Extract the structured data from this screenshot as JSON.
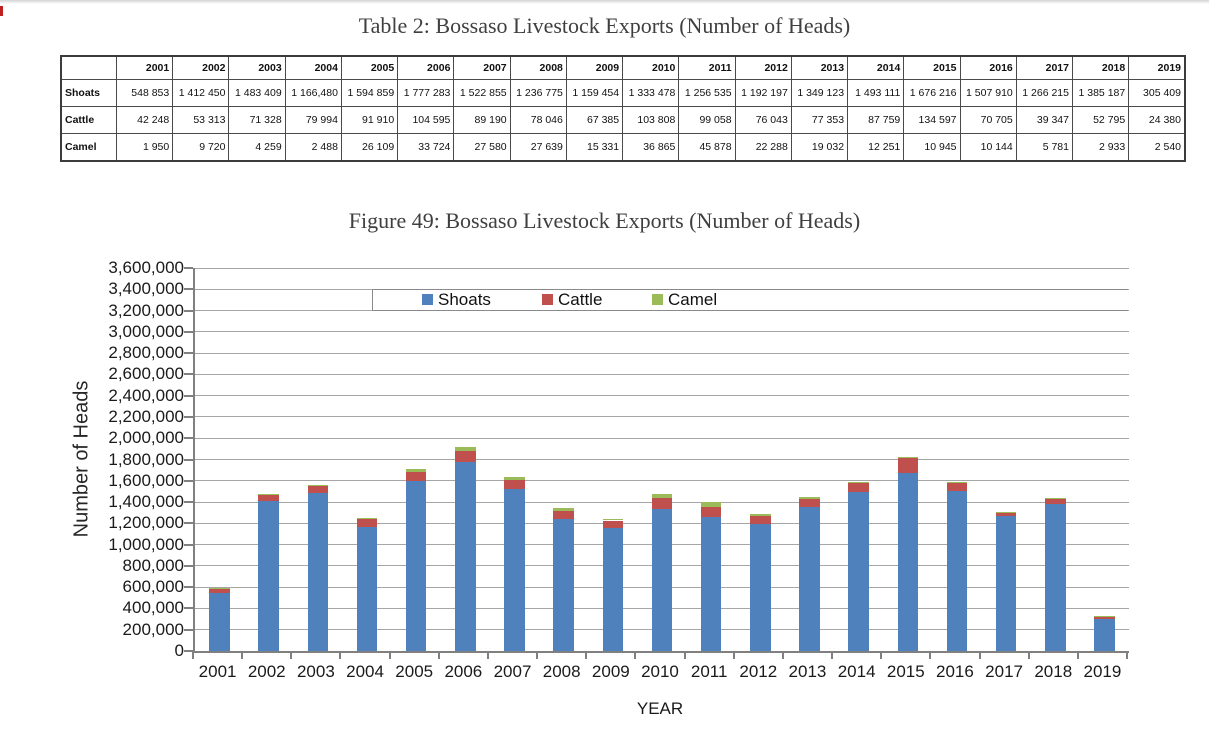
{
  "page": {
    "table_title": "Table 2: Bossaso Livestock Exports (Number of Heads)",
    "figure_title": "Figure 49: Bossaso Livestock Exports (Number of Heads)"
  },
  "table": {
    "header": [
      "",
      "2001",
      "2002",
      "2003",
      "2004",
      "2005",
      "2006",
      "2007",
      "2008",
      "2009",
      "2010",
      "2011",
      "2012",
      "2013",
      "2014",
      "2015",
      "2016",
      "2017",
      "2018",
      "2019"
    ],
    "rows": [
      {
        "label": "Shoats",
        "values": [
          "548 853",
          "1 412 450",
          "1 483 409",
          "1 166,480",
          "1 594 859",
          "1 777 283",
          "1 522 855",
          "1 236 775",
          "1 159 454",
          "1 333 478",
          "1 256 535",
          "1 192 197",
          "1 349 123",
          "1 493 111",
          "1 676 216",
          "1 507 910",
          "1 266 215",
          "1 385 187",
          "305 409"
        ]
      },
      {
        "label": "Cattle",
        "values": [
          "42 248",
          "53 313",
          "71 328",
          "79 994",
          "91 910",
          "104 595",
          "89 190",
          "78 046",
          "67 385",
          "103 808",
          "99 058",
          "76 043",
          "77 353",
          "87 759",
          "134 597",
          "70 705",
          "39 347",
          "52 795",
          "24 380"
        ]
      },
      {
        "label": "Camel",
        "values": [
          "1 950",
          "9 720",
          "4 259",
          "2 488",
          "26 109",
          "33 724",
          "27 580",
          "27 639",
          "15 331",
          "36 865",
          "45 878",
          "22 288",
          "19 032",
          "12 251",
          "10 945",
          "10 144",
          "5 781",
          "2 933",
          "2 540"
        ]
      }
    ]
  },
  "chart_data": {
    "type": "bar",
    "stacked": true,
    "title": "Figure 49: Bossaso Livestock Exports (Number of Heads)",
    "categories": [
      "2001",
      "2002",
      "2003",
      "2004",
      "2005",
      "2006",
      "2007",
      "2008",
      "2009",
      "2010",
      "2011",
      "2012",
      "2013",
      "2014",
      "2015",
      "2016",
      "2017",
      "2018",
      "2019"
    ],
    "series": [
      {
        "name": "Shoats",
        "color": "#4F81BD",
        "values": [
          548853,
          1412450,
          1483409,
          1166480,
          1594859,
          1777283,
          1522855,
          1236775,
          1159454,
          1333478,
          1256535,
          1192197,
          1349123,
          1493111,
          1676216,
          1507910,
          1266215,
          1385187,
          305409
        ]
      },
      {
        "name": "Cattle",
        "color": "#C0504D",
        "values": [
          42248,
          53313,
          71328,
          79994,
          91910,
          104595,
          89190,
          78046,
          67385,
          103808,
          99058,
          76043,
          77353,
          87759,
          134597,
          70705,
          39347,
          52795,
          24380
        ]
      },
      {
        "name": "Camel",
        "color": "#9BBB59",
        "values": [
          1950,
          9720,
          4259,
          2488,
          26109,
          33724,
          27580,
          27639,
          15331,
          36865,
          45878,
          22288,
          19032,
          12251,
          10945,
          10144,
          5781,
          2933,
          2540
        ]
      }
    ],
    "xlabel": "YEAR",
    "ylabel": "Number of Heads",
    "ylim": [
      0,
      3600000
    ],
    "ytick_step": 200000,
    "grid": true,
    "legend_position": "top-inside",
    "axis_color": "#808080",
    "gridline_color": "#A6A6A6"
  }
}
